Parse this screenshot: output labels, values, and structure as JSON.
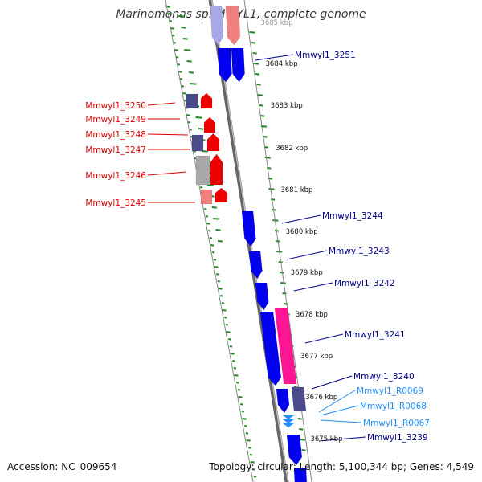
{
  "title": "Marinomonas sp. MWYL1, complete genome",
  "footer": {
    "accession": "Accession: NC_009654",
    "summary": "Topology: circular; Length: 5,100,344 bp; Genes: 4,549"
  },
  "colors": {
    "forward_cds": "#0000ee",
    "forward_cds_faint": "#a8a8e8",
    "reverse_cds": "#ee0000",
    "reverse_pale": "#f08080",
    "hypothetical": "#4b4b8c",
    "grey_gene": "#a9a9a9",
    "rrna": "#ff1493",
    "trna": "#1e90ff",
    "gc_ticks": "#1f8a1f",
    "label_forward": "#00008b",
    "label_reverse": "#dd0000",
    "label_rna": "#1e90ff"
  },
  "scale": {
    "ticks": [
      "3685 kbp",
      "3684 kbp",
      "3683 kbp",
      "3682 kbp",
      "3681 kbp",
      "3680 kbp",
      "3679 kbp",
      "3678 kbp",
      "3677 kbp",
      "3676 kbp",
      "3675 kbp"
    ]
  },
  "labels": {
    "left": [
      "Mmwyl1_3250",
      "Mmwyl1_3249",
      "Mmwyl1_3248",
      "Mmwyl1_3247",
      "Mmwyl1_3246",
      "Mmwyl1_3245"
    ],
    "right": [
      "Mmwyl1_3251",
      "Mmwyl1_3244",
      "Mmwyl1_3243",
      "Mmwyl1_3242",
      "Mmwyl1_3241",
      "Mmwyl1_3240",
      "Mmwyl1_R0069",
      "Mmwyl1_R0068",
      "Mmwyl1_R0067",
      "Mmwyl1_3239"
    ]
  }
}
